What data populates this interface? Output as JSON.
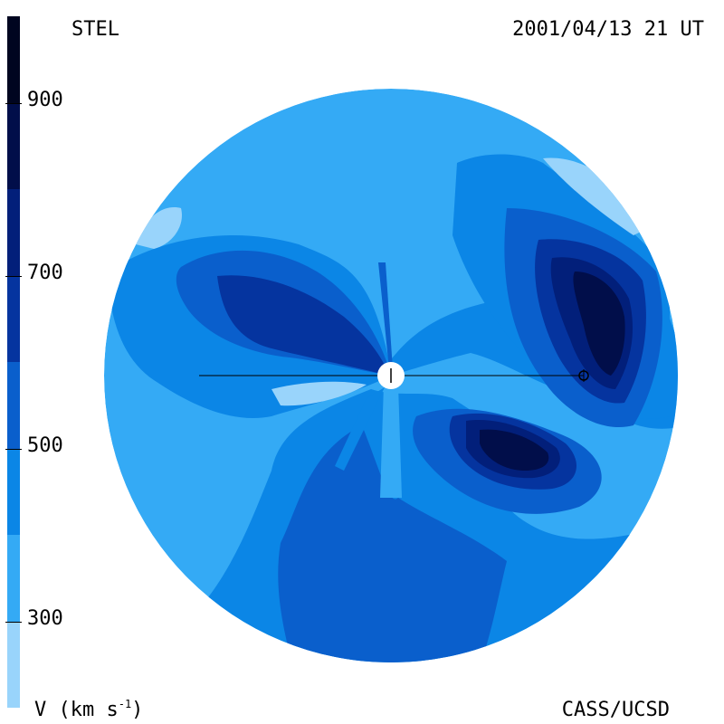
{
  "header": {
    "source": "STEL",
    "timestamp": "2001/04/13 21 UT"
  },
  "footer": {
    "credit": "CASS/UCSD",
    "unit_prefix": "V (km s",
    "unit_exponent": "-1",
    "unit_suffix": ")"
  },
  "colorbar": {
    "ticks": [
      {
        "label": "900",
        "value": 900
      },
      {
        "label": "700",
        "value": 700
      },
      {
        "label": "500",
        "value": 500
      },
      {
        "label": "300",
        "value": 300
      }
    ],
    "range": [
      200,
      1000
    ],
    "levels": [
      {
        "from": 200,
        "to": 300,
        "color": "#99d4fb"
      },
      {
        "from": 300,
        "to": 400,
        "color": "#34aaf5"
      },
      {
        "from": 400,
        "to": 500,
        "color": "#0b86e6"
      },
      {
        "from": 500,
        "to": 600,
        "color": "#0a5fcc"
      },
      {
        "from": 600,
        "to": 700,
        "color": "#05349f"
      },
      {
        "from": 700,
        "to": 800,
        "color": "#021f7a"
      },
      {
        "from": 800,
        "to": 900,
        "color": "#010e4a"
      },
      {
        "from": 900,
        "to": 1000,
        "color": "#000520"
      }
    ]
  }
}
